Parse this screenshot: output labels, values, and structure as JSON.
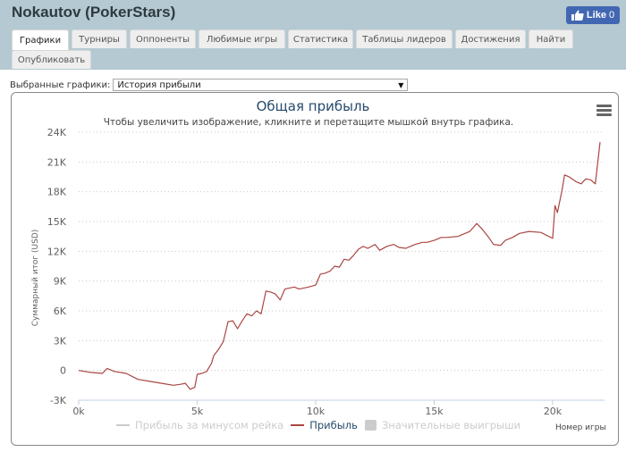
{
  "header": {
    "title": "Nokautov (PokerStars)",
    "fb_like": {
      "label": "Like",
      "count": "0"
    }
  },
  "tabs": [
    {
      "label": "Графики",
      "active": true
    },
    {
      "label": "Турниры"
    },
    {
      "label": "Оппоненты"
    },
    {
      "label": "Любимые игры"
    },
    {
      "label": "Статистика"
    },
    {
      "label": "Таблицы лидеров"
    },
    {
      "label": "Достижения"
    },
    {
      "label": "Найти"
    },
    {
      "label": "Опубликовать"
    }
  ],
  "graph_selector": {
    "label": "Выбранные графики:",
    "selected": "История прибыли"
  },
  "chart_data": {
    "type": "line",
    "title": "Общая прибыль",
    "subtitle": "Чтобы увеличить изображение, кликните и перетащите мышкой внутрь графика.",
    "xlabel": "Номер игры",
    "ylabel": "Суммарный итог (USD)",
    "x_ticks": [
      "0k",
      "5k",
      "10k",
      "15k",
      "20k"
    ],
    "y_ticks": [
      "24K",
      "21K",
      "18K",
      "15K",
      "12K",
      "9K",
      "6K",
      "3K",
      "0",
      "-3K"
    ],
    "xlim": [
      0,
      22000
    ],
    "ylim": [
      -3000,
      24000
    ],
    "grid": "horizontal dotted",
    "legend_position": "bottom",
    "legend": [
      {
        "name": "Прибыль за минусом рейка",
        "color": "#cccccc",
        "hidden": true,
        "kind": "line"
      },
      {
        "name": "Прибыль",
        "color": "#aa4643",
        "hidden": false,
        "kind": "line"
      },
      {
        "name": "Значительные выигрыши",
        "color": "#cccccc",
        "hidden": true,
        "kind": "box"
      }
    ],
    "series": [
      {
        "name": "Прибыль",
        "color": "#aa4643",
        "x": [
          0,
          500,
          1000,
          1200,
          1500,
          2000,
          2500,
          3000,
          3500,
          4000,
          4300,
          4500,
          4700,
          4900,
          5000,
          5200,
          5400,
          5600,
          5700,
          5900,
          6100,
          6300,
          6500,
          6700,
          6900,
          7100,
          7300,
          7500,
          7700,
          7900,
          8100,
          8300,
          8500,
          8700,
          8900,
          9100,
          9300,
          9500,
          9700,
          10000,
          10200,
          10400,
          10600,
          10800,
          11000,
          11200,
          11400,
          11600,
          11800,
          12000,
          12200,
          12500,
          12700,
          13000,
          13300,
          13500,
          13800,
          14000,
          14200,
          14500,
          14700,
          15000,
          15300,
          15500,
          16000,
          16500,
          16800,
          17000,
          17300,
          17500,
          17800,
          18000,
          18300,
          18600,
          19000,
          19500,
          20000,
          20100,
          20200,
          20400,
          20500,
          20700,
          21000,
          21200,
          21400,
          21600,
          21800,
          22000
        ],
        "values": [
          0,
          -200,
          -300,
          200,
          -100,
          -300,
          -900,
          -1100,
          -1300,
          -1500,
          -1400,
          -1300,
          -1900,
          -1700,
          -400,
          -300,
          -100,
          700,
          1500,
          2100,
          2900,
          4900,
          5000,
          4200,
          5000,
          5700,
          5500,
          6000,
          5700,
          8000,
          7900,
          7700,
          7100,
          8200,
          8300,
          8400,
          8200,
          8300,
          8400,
          8600,
          9700,
          9800,
          10000,
          10500,
          10400,
          11200,
          11100,
          11600,
          12200,
          12500,
          12300,
          12700,
          12100,
          12500,
          12700,
          12400,
          12300,
          12500,
          12700,
          12900,
          12900,
          13100,
          13400,
          13400,
          13500,
          14000,
          14800,
          14300,
          13400,
          12700,
          12600,
          13100,
          13400,
          13800,
          14000,
          13900,
          13300,
          16600,
          15900,
          18200,
          19700,
          19500,
          19000,
          18800,
          19300,
          19200,
          18800,
          23000
        ]
      }
    ]
  }
}
